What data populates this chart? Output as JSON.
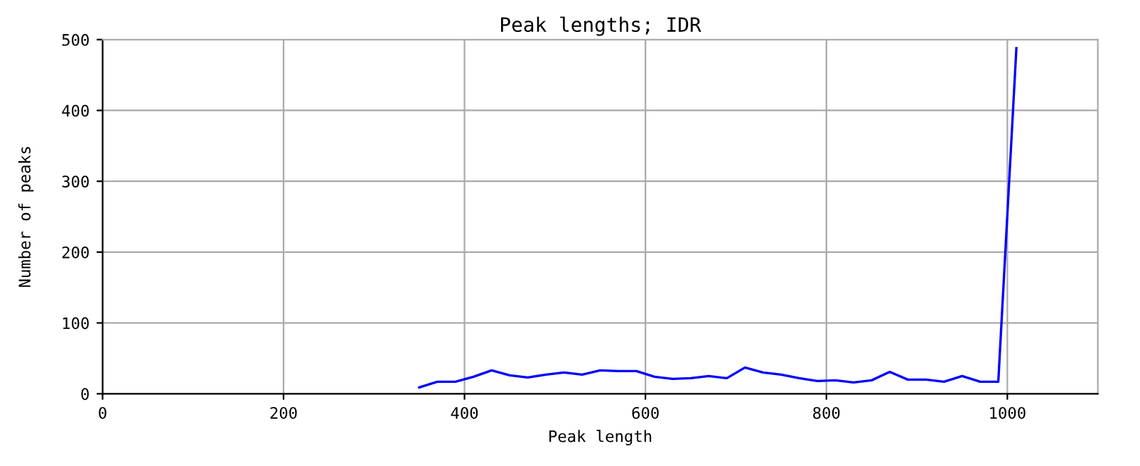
{
  "chart_data": {
    "type": "line",
    "title": "Peak lengths; IDR",
    "xlabel": "Peak length",
    "ylabel": "Number of peaks",
    "x": [
      350,
      370,
      390,
      410,
      430,
      450,
      470,
      490,
      510,
      530,
      550,
      570,
      590,
      610,
      630,
      650,
      670,
      690,
      710,
      730,
      750,
      770,
      790,
      810,
      830,
      850,
      870,
      890,
      910,
      930,
      950,
      970,
      990,
      1010
    ],
    "series": [
      {
        "color": "#0000ff",
        "values": [
          9,
          17,
          17,
          24,
          33,
          26,
          23,
          27,
          30,
          27,
          33,
          32,
          32,
          24,
          21,
          22,
          25,
          22,
          37,
          30,
          27,
          22,
          18,
          19,
          16,
          19,
          31,
          20,
          20,
          17,
          25,
          17,
          17,
          488
        ]
      }
    ],
    "xlim": [
      0,
      1100
    ],
    "xticks": [
      0,
      200,
      400,
      600,
      800,
      1000
    ],
    "ylim": [
      0,
      500
    ],
    "yticks": [
      0,
      100,
      200,
      300,
      400,
      500
    ],
    "grid": true,
    "marker": "none",
    "line_style": "solid"
  }
}
